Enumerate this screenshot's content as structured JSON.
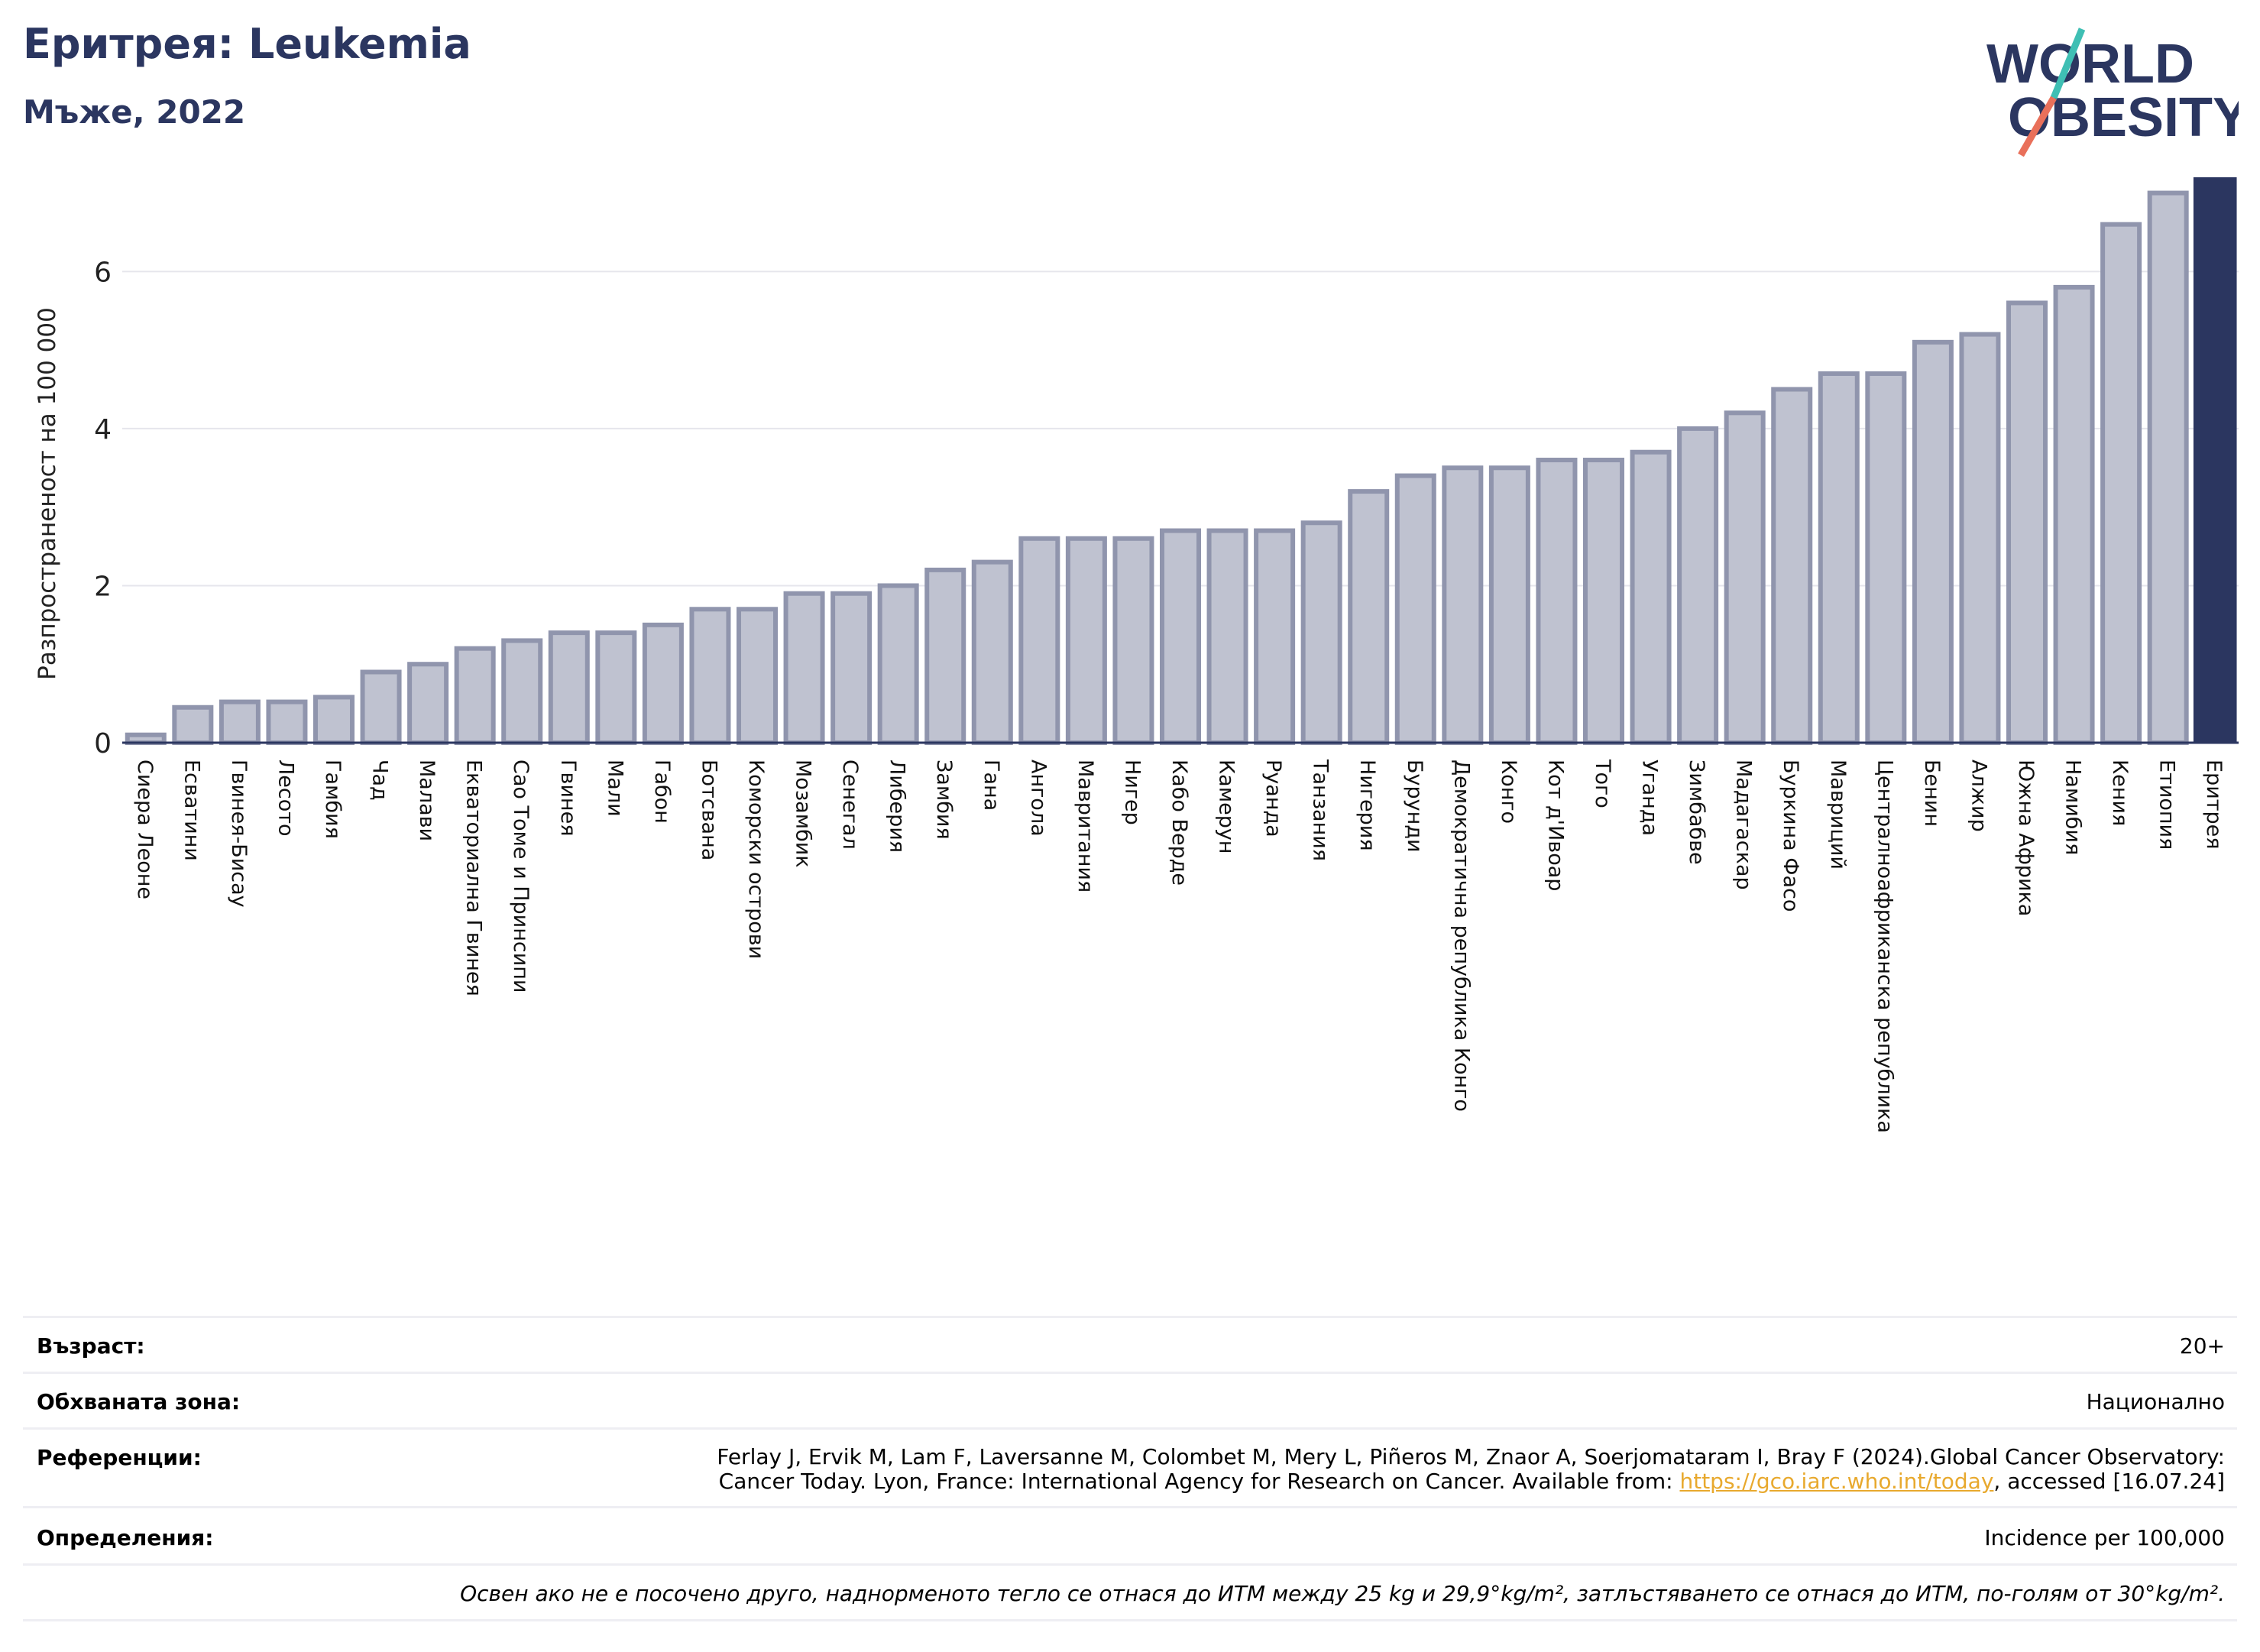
{
  "header": {
    "title": "Еритрея: Leukemia",
    "subtitle": "Мъже, 2022"
  },
  "logo": {
    "line1": "WORLD",
    "line2": "OBESITY"
  },
  "chart_data": {
    "type": "bar",
    "ylabel": "Разпространеност  на 100 000",
    "ylim": [
      0,
      7.2
    ],
    "yticks": [
      0,
      2,
      4,
      6
    ],
    "grid": true,
    "highlight": "Еритрея",
    "colors": {
      "bar": "#bfc2d0",
      "bar_edge": "#9095ad",
      "highlight": "#2b3660",
      "axis": "#2b3660"
    },
    "categories": [
      "Сиера Леоне",
      "Есватини",
      "Гвинея-Бисау",
      "Лесото",
      "Гамбия",
      "Чад",
      "Малави",
      "Екваториална Гвинея",
      "Сао Томе и Принсипи",
      "Гвинея",
      "Мали",
      "Габон",
      "Ботсвана",
      "Коморски острови",
      "Мозамбик",
      "Сенегал",
      "Либерия",
      "Замбия",
      "Гана",
      "Ангола",
      "Мавритания",
      "Нигер",
      "Кабо Верде",
      "Камерун",
      "Руанда",
      "Танзания",
      "Нигерия",
      "Бурунди",
      "Демократична република Конго",
      "Конго",
      "Кот д'Ивоар",
      "Того",
      "Уганда",
      "Зимбабве",
      "Мадагаскар",
      "Буркина Фасо",
      "Мавриций",
      "Централноафриканска република",
      "Бенин",
      "Алжир",
      "Южна Африка",
      "Намибия",
      "Кения",
      "Етиопия",
      "Еритрея"
    ],
    "values": [
      0.1,
      0.45,
      0.52,
      0.52,
      0.58,
      0.9,
      1.0,
      1.2,
      1.3,
      1.4,
      1.4,
      1.5,
      1.7,
      1.7,
      1.9,
      1.9,
      2.0,
      2.2,
      2.3,
      2.6,
      2.6,
      2.6,
      2.7,
      2.7,
      2.7,
      2.8,
      3.2,
      3.4,
      3.5,
      3.5,
      3.6,
      3.6,
      3.7,
      4.0,
      4.2,
      4.5,
      4.7,
      4.7,
      5.1,
      5.2,
      5.6,
      5.8,
      6.6,
      7.0,
      7.2
    ]
  },
  "info": {
    "age_label": "Възраст:",
    "age_value": "20+",
    "zone_label": "Обхваната зона:",
    "zone_value": "Национално",
    "refs_label": "Референции:",
    "refs_line1": "Ferlay J, Ervik M, Lam F, Laversanne M, Colombet M, Mery L, Piñeros M, Znaor A, Soerjomataram I, Bray F (2024).Global Cancer Observatory:",
    "refs_line2_pre": "Cancer Today. Lyon, France: International Agency for Research on Cancer. Available from: ",
    "refs_link": "https://gco.iarc.who.int/today",
    "refs_line2_post": ", accessed [16.07.24]",
    "defs_label": "Определения:",
    "defs_value": "Incidence per 100,000",
    "note": "Освен ако не е посочено друго, наднорменото тегло се отнася до ИТМ между 25 kg и 29,9°kg/m², затлъстяването се отнася до ИТМ, по-голям от 30°kg/m²."
  }
}
